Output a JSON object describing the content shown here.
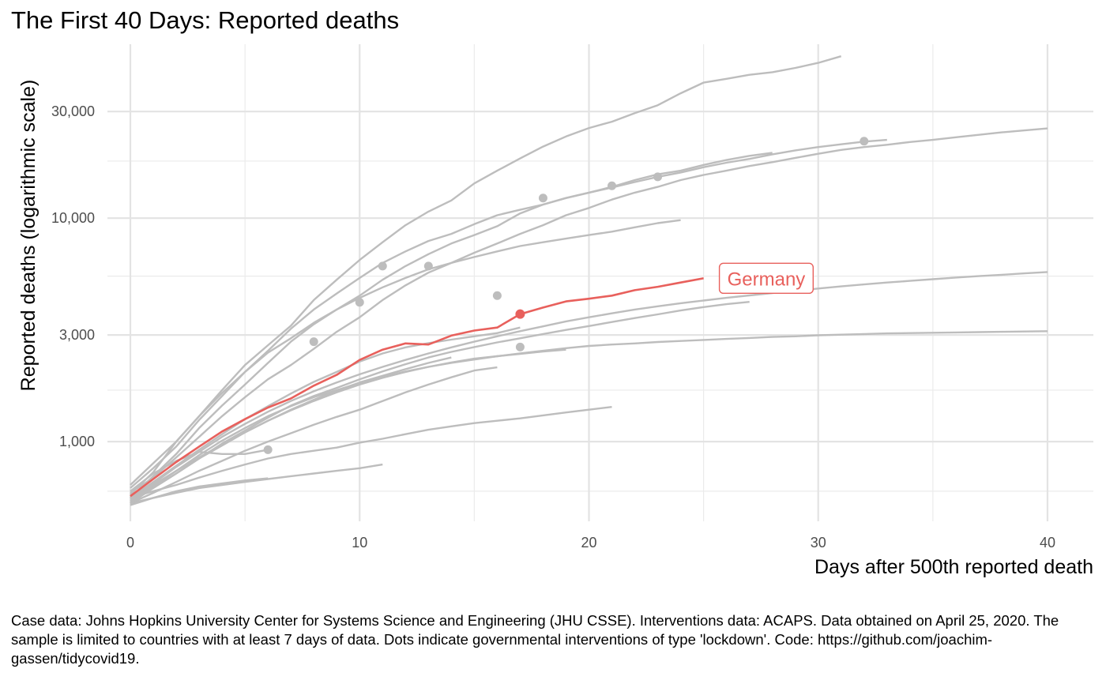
{
  "chart_data": {
    "type": "line",
    "title": "The First 40 Days: Reported deaths",
    "xlabel": "Days after 500th reported death",
    "ylabel": "Reported deaths (logarithmic scale)",
    "x_scale": "linear",
    "y_scale": "log",
    "xlim": [
      -1,
      42
    ],
    "ylim": [
      440,
      60000
    ],
    "x_ticks": [
      0,
      10,
      20,
      30,
      40
    ],
    "x_tick_labels": [
      "0",
      "10",
      "20",
      "30",
      "40"
    ],
    "y_ticks": [
      1000,
      3000,
      10000,
      30000
    ],
    "y_tick_labels": [
      "1,000",
      "3,000",
      "10,000",
      "30,000"
    ],
    "x_minor_ticks": [
      5,
      15,
      25,
      35
    ],
    "y_minor_ticks": [
      600,
      1700,
      5500,
      18000
    ],
    "grid": true,
    "highlight_color": "#e8605c",
    "background_series_color": "#bdbdbd",
    "caption": "Case data: Johns Hopkins University Center for Systems Science and Engineering (JHU CSSE). Interventions data: ACAPS. Data obtained on April 25, 2020. The sample is limited to countries with at least 7 days of data. Dots indicate governmental interventions of type 'lockdown'. Code: https://github.com/joachim-gassen/tidycovid19.",
    "highlight": {
      "name": "Germany",
      "x": [
        0,
        1,
        2,
        3,
        4,
        5,
        6,
        7,
        8,
        9,
        10,
        11,
        12,
        13,
        14,
        15,
        16,
        17,
        18,
        19,
        20,
        21,
        22,
        23,
        24,
        25
      ],
      "values": [
        570,
        680,
        810,
        950,
        1110,
        1260,
        1420,
        1560,
        1780,
        1990,
        2320,
        2580,
        2750,
        2720,
        2980,
        3140,
        3240,
        3720,
        3980,
        4240,
        4360,
        4500,
        4760,
        4930,
        5150,
        5380
      ],
      "lockdown_x": [
        17
      ],
      "lockdown_values": [
        3720
      ]
    },
    "series": [
      {
        "x": [
          0,
          1,
          2,
          3,
          4,
          5,
          6,
          7,
          8,
          9,
          10,
          11,
          12,
          13,
          14,
          15,
          16,
          17,
          18,
          19,
          20,
          21,
          22,
          23,
          24,
          25,
          26,
          27,
          28,
          29,
          30,
          31
        ],
        "values": [
          580,
          730,
          1000,
          1300,
          1700,
          2200,
          2700,
          3300,
          4300,
          5300,
          6500,
          7800,
          9300,
          10700,
          12000,
          14300,
          16300,
          18500,
          20900,
          23200,
          25300,
          27000,
          29500,
          32000,
          36200,
          40400,
          42000,
          43800,
          45000,
          47000,
          49500,
          53000
        ]
      },
      {
        "x": [
          0,
          1,
          2,
          3,
          4,
          5,
          6,
          7,
          8,
          9,
          10,
          11,
          12,
          13,
          14,
          15,
          16,
          17,
          18,
          19,
          20,
          21,
          22,
          23,
          24,
          25,
          26,
          27,
          28,
          29,
          30,
          31,
          32,
          33,
          34,
          35,
          36,
          37,
          38,
          39,
          40
        ],
        "values": [
          590,
          690,
          850,
          1050,
          1300,
          1580,
          1900,
          2200,
          2600,
          3100,
          3600,
          4300,
          5000,
          5700,
          6300,
          7000,
          7700,
          8500,
          9300,
          10300,
          11100,
          12100,
          13000,
          13800,
          14800,
          15600,
          16300,
          17100,
          17800,
          18600,
          19400,
          20200,
          20800,
          21300,
          21900,
          22400,
          23000,
          23600,
          24200,
          24700,
          25200
        ]
      },
      {
        "x": [
          0,
          1,
          2,
          3,
          4,
          5,
          6,
          7,
          8,
          9,
          10,
          11,
          12,
          13,
          14,
          15,
          16,
          17,
          18,
          19,
          20,
          21,
          22,
          23,
          24,
          25,
          26,
          27,
          28,
          29,
          30,
          31,
          32,
          33
        ],
        "values": [
          560,
          700,
          880,
          1150,
          1450,
          1800,
          2250,
          2800,
          3350,
          3900,
          4500,
          5300,
          6100,
          6900,
          7700,
          8400,
          9200,
          10500,
          11500,
          12300,
          13000,
          13700,
          14500,
          15300,
          16000,
          16900,
          17700,
          18400,
          19300,
          20100,
          20800,
          21400,
          22000,
          22400
        ]
      },
      {
        "x": [
          0,
          1,
          2,
          3,
          4,
          5,
          6,
          7,
          8,
          9,
          10,
          11,
          12,
          13,
          14,
          15,
          16,
          17,
          18,
          19,
          20,
          21,
          22,
          23,
          24,
          25,
          26,
          27,
          28
        ],
        "values": [
          620,
          760,
          950,
          1250,
          1600,
          2050,
          2550,
          3200,
          3900,
          4600,
          5400,
          6300,
          7100,
          7900,
          8500,
          9400,
          10300,
          10900,
          11500,
          12300,
          13000,
          13800,
          14800,
          15700,
          16300,
          17300,
          18200,
          19000,
          19600
        ]
      },
      {
        "x": [
          0,
          1,
          2,
          3,
          4,
          5,
          6,
          7,
          8,
          9,
          10,
          11,
          12,
          13,
          14,
          15,
          16,
          17,
          18,
          19,
          20,
          21,
          22,
          23,
          24
        ],
        "values": [
          640,
          800,
          1000,
          1300,
          1650,
          2050,
          2500,
          2900,
          3400,
          3900,
          4400,
          4900,
          5400,
          5900,
          6300,
          6700,
          7100,
          7500,
          7800,
          8100,
          8400,
          8700,
          9100,
          9500,
          9800
        ]
      },
      {
        "x": [
          0,
          1,
          2,
          3,
          4,
          5,
          6,
          7,
          8,
          9,
          10,
          11,
          12,
          13,
          14,
          15,
          16,
          17,
          18,
          19,
          20,
          21,
          22,
          23,
          24,
          25,
          26,
          27,
          28,
          29,
          30,
          31,
          32,
          33,
          34,
          35,
          36,
          37,
          38,
          39,
          40
        ],
        "values": [
          560,
          650,
          770,
          900,
          1050,
          1200,
          1360,
          1520,
          1680,
          1840,
          2000,
          2160,
          2320,
          2480,
          2640,
          2800,
          2960,
          3120,
          3280,
          3450,
          3600,
          3750,
          3900,
          4030,
          4160,
          4280,
          4400,
          4510,
          4620,
          4730,
          4840,
          4950,
          5050,
          5150,
          5240,
          5330,
          5420,
          5500,
          5580,
          5660,
          5740
        ]
      },
      {
        "x": [
          0,
          1,
          2,
          3,
          4,
          5,
          6,
          7,
          8,
          9,
          10,
          11,
          12,
          13,
          14,
          15,
          16,
          17,
          18,
          19,
          20,
          21,
          22,
          23,
          24,
          25,
          26,
          27
        ],
        "values": [
          530,
          620,
          720,
          840,
          980,
          1120,
          1280,
          1450,
          1600,
          1740,
          1900,
          2060,
          2220,
          2380,
          2520,
          2650,
          2780,
          2900,
          3030,
          3160,
          3290,
          3430,
          3570,
          3710,
          3860,
          4000,
          4120,
          4220
        ]
      },
      {
        "x": [
          0,
          1,
          2,
          3,
          4,
          5,
          6,
          7,
          8,
          9,
          10,
          11,
          12,
          13,
          14,
          15,
          16,
          17,
          18,
          19,
          20,
          21,
          22,
          23,
          24,
          25,
          26,
          27,
          28,
          29,
          30,
          31,
          32,
          33,
          34,
          35,
          36,
          37,
          38,
          39,
          40
        ],
        "values": [
          540,
          630,
          740,
          870,
          1010,
          1150,
          1300,
          1440,
          1580,
          1700,
          1830,
          1950,
          2060,
          2160,
          2250,
          2330,
          2410,
          2480,
          2550,
          2620,
          2680,
          2720,
          2750,
          2790,
          2820,
          2850,
          2880,
          2910,
          2940,
          2960,
          2990,
          3010,
          3030,
          3050,
          3060,
          3070,
          3080,
          3090,
          3100,
          3110,
          3120
        ]
      },
      {
        "x": [
          0,
          1,
          2,
          3,
          4,
          5,
          6,
          7,
          8,
          9,
          10,
          11,
          12,
          13,
          14,
          15,
          16,
          17
        ],
        "values": [
          560,
          660,
          780,
          920,
          1080,
          1260,
          1440,
          1640,
          1850,
          2050,
          2280,
          2480,
          2640,
          2760,
          2860,
          2960,
          3060,
          3240
        ]
      },
      {
        "x": [
          0,
          1,
          2,
          3,
          4,
          5,
          6,
          7,
          8,
          9,
          10,
          11,
          12,
          13,
          14,
          15,
          16,
          17,
          18,
          19
        ],
        "values": [
          540,
          620,
          720,
          840,
          960,
          1100,
          1240,
          1380,
          1520,
          1660,
          1800,
          1930,
          2050,
          2160,
          2260,
          2350,
          2410,
          2470,
          2530,
          2580
        ]
      },
      {
        "x": [
          0,
          1,
          2,
          3,
          4,
          5,
          6,
          7,
          8,
          9,
          10,
          11,
          12,
          13,
          14
        ],
        "values": [
          550,
          640,
          740,
          850,
          970,
          1100,
          1240,
          1390,
          1540,
          1690,
          1840,
          1970,
          2110,
          2250,
          2380
        ]
      },
      {
        "x": [
          0,
          1,
          2,
          3,
          4,
          5,
          6,
          7,
          8,
          9,
          10,
          11,
          12,
          13,
          14,
          15,
          16
        ],
        "values": [
          530,
          590,
          660,
          740,
          820,
          910,
          1000,
          1090,
          1190,
          1290,
          1390,
          1520,
          1660,
          1800,
          1940,
          2080,
          2150
        ]
      },
      {
        "x": [
          0,
          1,
          2,
          3,
          4,
          5,
          6,
          7,
          8,
          9,
          10,
          11,
          12,
          13,
          14,
          15,
          16,
          17,
          18,
          19,
          20,
          21
        ],
        "values": [
          560,
          600,
          640,
          690,
          740,
          790,
          840,
          880,
          910,
          940,
          990,
          1030,
          1080,
          1130,
          1170,
          1210,
          1240,
          1270,
          1310,
          1350,
          1390,
          1430
        ]
      },
      {
        "x": [
          0,
          1,
          2,
          3,
          4,
          5,
          6,
          7,
          8,
          9,
          10,
          11
        ],
        "values": [
          530,
          560,
          590,
          620,
          640,
          660,
          680,
          700,
          720,
          740,
          760,
          790
        ]
      },
      {
        "x": [
          0,
          1,
          2,
          3,
          4,
          5,
          6
        ],
        "values": [
          520,
          560,
          600,
          630,
          650,
          670,
          685
        ]
      },
      {
        "x": [
          0,
          1,
          2,
          3,
          4,
          5,
          6
        ],
        "values": [
          600,
          720,
          820,
          900,
          880,
          880,
          920
        ]
      }
    ],
    "lockdown_points": [
      {
        "x": 8,
        "value": 2800
      },
      {
        "x": 10,
        "value": 4200
      },
      {
        "x": 11,
        "value": 6100
      },
      {
        "x": 13,
        "value": 6100
      },
      {
        "x": 16,
        "value": 4500
      },
      {
        "x": 17,
        "value": 2650
      },
      {
        "x": 18,
        "value": 12300
      },
      {
        "x": 21,
        "value": 13950
      },
      {
        "x": 23,
        "value": 15300
      },
      {
        "x": 32,
        "value": 22100
      },
      {
        "x": 6,
        "value": 920
      }
    ]
  }
}
